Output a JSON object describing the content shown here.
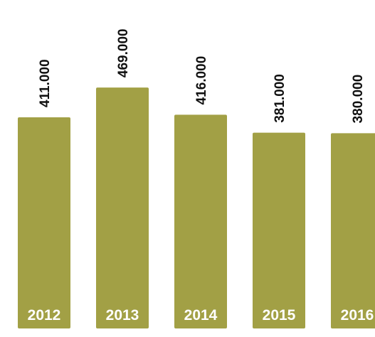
{
  "chart_data": {
    "type": "bar",
    "categories": [
      "2012",
      "2013",
      "2014",
      "2015",
      "2016"
    ],
    "values": [
      411000,
      469000,
      416000,
      381000,
      380000
    ],
    "value_labels": [
      "411.000",
      "469.000",
      "416.000",
      "381.000",
      "380.000"
    ],
    "title": "",
    "xlabel": "",
    "ylabel": "",
    "bar_color": "#a2a045",
    "label_color": "#111111",
    "category_label_color": "#ffffff",
    "grid": false,
    "legend": "none"
  }
}
